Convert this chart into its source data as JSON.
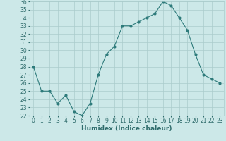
{
  "x": [
    0,
    1,
    2,
    3,
    4,
    5,
    6,
    7,
    8,
    9,
    10,
    11,
    12,
    13,
    14,
    15,
    16,
    17,
    18,
    19,
    20,
    21,
    22,
    23
  ],
  "y": [
    28,
    25,
    25,
    23.5,
    24.5,
    22.5,
    22,
    23.5,
    27,
    29.5,
    30.5,
    33,
    33,
    33.5,
    34,
    34.5,
    36,
    35.5,
    34,
    32.5,
    29.5,
    27,
    26.5,
    26
  ],
  "line_color": "#2e7b7b",
  "marker": "o",
  "markersize": 2,
  "linewidth": 0.8,
  "xlabel": "Humidex (Indice chaleur)",
  "ylim": [
    22,
    36
  ],
  "xlim": [
    -0.5,
    23.5
  ],
  "yticks": [
    22,
    23,
    24,
    25,
    26,
    27,
    28,
    29,
    30,
    31,
    32,
    33,
    34,
    35,
    36
  ],
  "xticks": [
    0,
    1,
    2,
    3,
    4,
    5,
    6,
    7,
    8,
    9,
    10,
    11,
    12,
    13,
    14,
    15,
    16,
    17,
    18,
    19,
    20,
    21,
    22,
    23
  ],
  "bg_color": "#cce8e8",
  "grid_color": "#aacccc",
  "font_color": "#2e6b6b",
  "axis_fontsize": 6.5,
  "tick_fontsize": 5.5
}
